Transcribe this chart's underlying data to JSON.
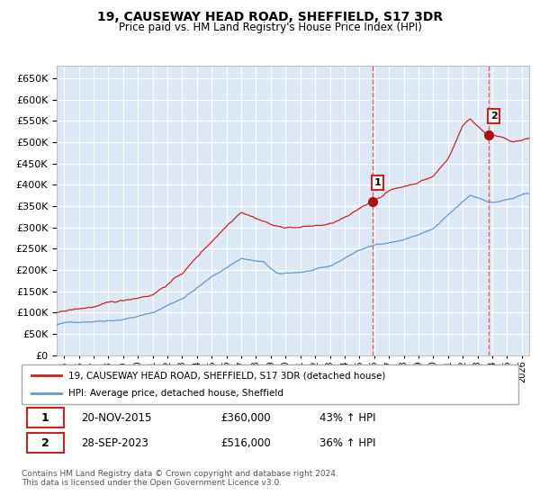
{
  "title": "19, CAUSEWAY HEAD ROAD, SHEFFIELD, S17 3DR",
  "subtitle": "Price paid vs. HM Land Registry's House Price Index (HPI)",
  "legend_line1": "19, CAUSEWAY HEAD ROAD, SHEFFIELD, S17 3DR (detached house)",
  "legend_line2": "HPI: Average price, detached house, Sheffield",
  "sale1_date": "20-NOV-2015",
  "sale1_price": 360000,
  "sale1_label": "43% ↑ HPI",
  "sale1_x": 2015.9,
  "sale2_date": "28-SEP-2023",
  "sale2_price": 516000,
  "sale2_label": "36% ↑ HPI",
  "sale2_x": 2023.75,
  "ylim": [
    0,
    680000
  ],
  "xlim_start": 1994.5,
  "xlim_end": 2026.5,
  "hpi_color": "#6699cc",
  "price_color": "#cc2222",
  "background_color": "#dce9f5",
  "grid_color": "#ffffff",
  "sale_marker_color": "#aa1111",
  "vline_color": "#ee4444",
  "footer": "Contains HM Land Registry data © Crown copyright and database right 2024.\nThis data is licensed under the Open Government Licence v3.0.",
  "hpi_milestones_t": [
    1994.5,
    1995,
    1997,
    1999,
    2001,
    2003,
    2005,
    2007,
    2008.5,
    2009.5,
    2011,
    2013,
    2015,
    2016.5,
    2018,
    2020,
    2021.5,
    2022.5,
    2024,
    2025.5,
    2026.5
  ],
  "hpi_milestones_v": [
    72000,
    75000,
    82000,
    90000,
    105000,
    140000,
    190000,
    235000,
    225000,
    195000,
    200000,
    210000,
    250000,
    265000,
    275000,
    300000,
    345000,
    375000,
    360000,
    370000,
    380000
  ],
  "price_milestones_t": [
    1994.5,
    1995,
    1997,
    1999,
    2001,
    2003,
    2005,
    2007,
    2008.5,
    2009.5,
    2011,
    2013,
    2014.5,
    2015.9,
    2017,
    2018.5,
    2020,
    2021,
    2022,
    2022.5,
    2023.75,
    2024.5,
    2025.5,
    2026.5
  ],
  "price_milestones_v": [
    100000,
    102000,
    112000,
    122000,
    140000,
    190000,
    265000,
    340000,
    320000,
    305000,
    305000,
    310000,
    330000,
    360000,
    385000,
    400000,
    420000,
    460000,
    540000,
    555000,
    516000,
    515000,
    505000,
    510000
  ]
}
